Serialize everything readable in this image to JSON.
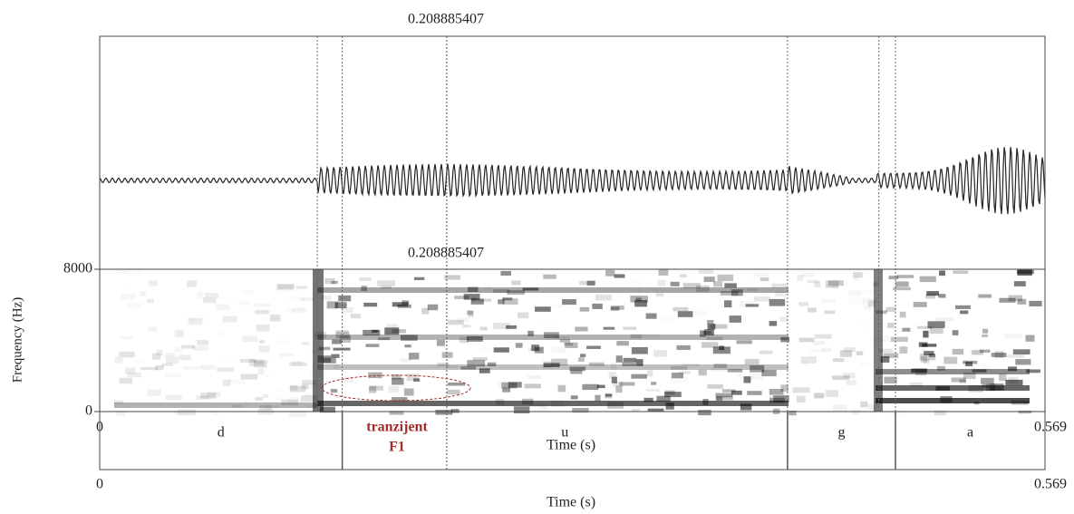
{
  "chart_data": {
    "type": "spectrogram",
    "cursor": 0.208885407,
    "xlim": [
      0,
      0.569
    ],
    "xticks": [
      0,
      0.569
    ],
    "ylim": [
      0,
      8000
    ],
    "yticks": [
      0,
      8000
    ],
    "xlabel": "Time (s)",
    "ylabel": "Frequency (Hz)",
    "intervals": [
      {
        "label": "d",
        "start": 0,
        "end": 0.146
      },
      {
        "label": "u",
        "start": 0.146,
        "end": 0.414
      },
      {
        "label": "g",
        "start": 0.414,
        "end": 0.479
      },
      {
        "label": "a",
        "start": 0.479,
        "end": 0.569
      }
    ],
    "dotted_lines": [
      0.131,
      0.146,
      0.414,
      0.469,
      0.479
    ],
    "annotation": {
      "lines": [
        "tranzijent",
        "F1"
      ],
      "color": "#a52a2a"
    }
  }
}
